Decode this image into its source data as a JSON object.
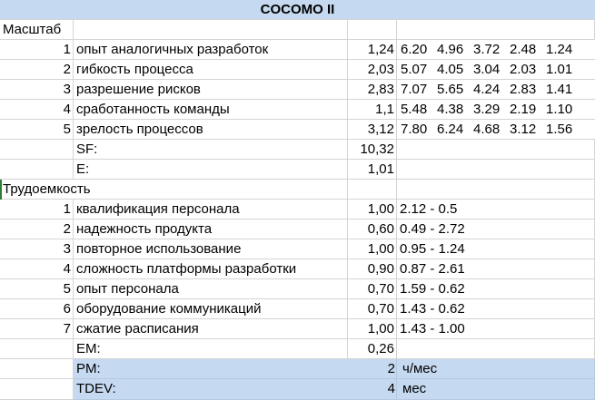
{
  "title": "COCOMO II",
  "scale": {
    "label": "Масштаб",
    "factors": [
      {
        "n": "1",
        "name": "опыт аналогичных разработок",
        "value": "1,24",
        "options": [
          "6.20",
          "4.96",
          "3.72",
          "2.48",
          "1.24"
        ]
      },
      {
        "n": "2",
        "name": "гибкость процесса",
        "value": "2,03",
        "options": [
          "5.07",
          "4.05",
          "3.04",
          "2.03",
          "1.01"
        ]
      },
      {
        "n": "3",
        "name": "разрешение рисков",
        "value": "2,83",
        "options": [
          "7.07",
          "5.65",
          "4.24",
          "2.83",
          "1.41"
        ]
      },
      {
        "n": "4",
        "name": "сработанность команды",
        "value": "1,1",
        "options": [
          "5.48",
          "4.38",
          "3.29",
          "2.19",
          "1.10"
        ]
      },
      {
        "n": "5",
        "name": "зрелость процессов",
        "value": "3,12",
        "options": [
          "7.80",
          "6.24",
          "4.68",
          "3.12",
          "1.56"
        ]
      }
    ],
    "sf_label": "SF:",
    "sf_value": "10,32",
    "e_label": "E:",
    "e_value": "1,01"
  },
  "effort": {
    "label": "Трудоемкость",
    "factors": [
      {
        "n": "1",
        "name": "квалификация персонала",
        "value": "1,00",
        "range": "2.12 - 0.5"
      },
      {
        "n": "2",
        "name": "надежность продукта",
        "value": "0,60",
        "range": "0.49 - 2.72"
      },
      {
        "n": "3",
        "name": "повторное использование",
        "value": "1,00",
        "range": "0.95 - 1.24"
      },
      {
        "n": "4",
        "name": "сложность платформы разработки",
        "value": "0,90",
        "range": "0.87 - 2.61"
      },
      {
        "n": "5",
        "name": "опыт персонала",
        "value": "0,70",
        "range": "1.59 - 0.62"
      },
      {
        "n": "6",
        "name": "оборудование коммуникаций",
        "value": "0,70",
        "range": "1.43 - 0.62"
      },
      {
        "n": "7",
        "name": "сжатие расписания",
        "value": "1,00",
        "range": "1.43 - 1.00"
      }
    ],
    "em_label": "EM:",
    "em_value": "0,26"
  },
  "results": {
    "pm_label": "PM:",
    "pm_value": "2",
    "pm_unit": "ч/мес",
    "tdev_label": "TDEV:",
    "tdev_value": "4",
    "tdev_unit": "мес"
  },
  "colors": {
    "header_fill": "#c5d9f1",
    "grid": "#d4d4d4"
  }
}
